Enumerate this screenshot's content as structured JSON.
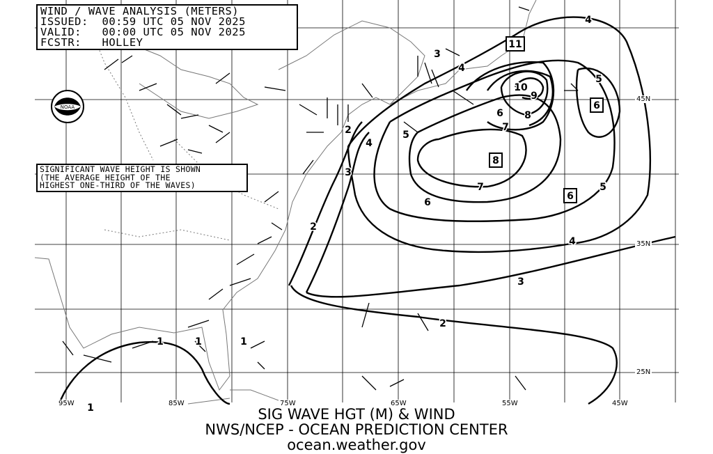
{
  "header": {
    "title": "WIND / WAVE ANALYSIS (METERS)",
    "issued": "ISSUED:  00:59 UTC 05 NOV 2025",
    "valid": "VALID:   00:00 UTC 05 NOV 2025",
    "forecaster": "FCSTR:   HOLLEY"
  },
  "note": {
    "line1": "SIGNIFICANT WAVE HEIGHT IS SHOWN",
    "line2": "(THE AVERAGE HEIGHT OF THE",
    "line3": "HIGHEST ONE-THIRD OF THE WAVES)"
  },
  "footer": {
    "line1": "SIG WAVE HGT (M) & WIND",
    "line2": "NWS/NCEP - OCEAN PREDICTION CENTER",
    "line3": "ocean.weather.gov"
  },
  "longitude_labels": [
    "95W",
    "85W",
    "75W",
    "65W",
    "55W",
    "45W"
  ],
  "latitude_labels": [
    "45N",
    "35N",
    "25N"
  ],
  "logo": "NOAA",
  "contour_labels": [
    "1",
    "1",
    "1",
    "1",
    "2",
    "2",
    "2",
    "3",
    "3",
    "3",
    "4",
    "4",
    "4",
    "4",
    "5",
    "5",
    "5",
    "6",
    "6",
    "7",
    "7",
    "8",
    "9",
    "10"
  ],
  "max_labels": [
    "11",
    "8",
    "6",
    "6"
  ],
  "colors": {
    "background": "#ffffff",
    "lines": "#000000",
    "coast": "#888888"
  }
}
